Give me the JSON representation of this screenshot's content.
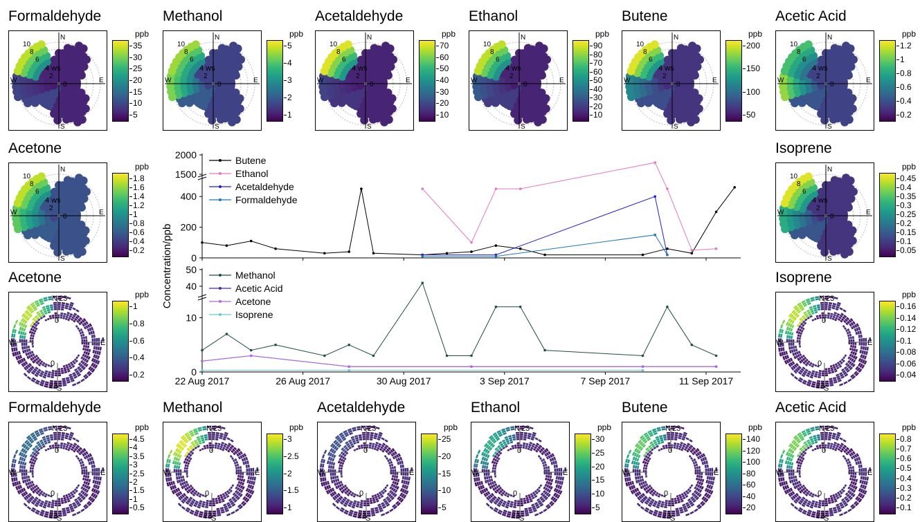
{
  "roses_top": [
    {
      "title": "Formaldehyde",
      "unit": "ppb",
      "ticks": [
        "35",
        "30",
        "25",
        "20",
        "15",
        "10",
        "5"
      ],
      "hot": [
        0.2,
        0.7,
        0.9
      ],
      "base": 0.1
    },
    {
      "title": "Methanol",
      "unit": "ppb",
      "ticks": [
        "5",
        "4",
        "3",
        "2",
        "1"
      ],
      "hot": [
        0.9,
        0.95,
        0.85
      ],
      "base": 0.2
    },
    {
      "title": "Acetaldehyde",
      "unit": "ppb",
      "ticks": [
        "70",
        "60",
        "50",
        "40",
        "30",
        "20",
        "10"
      ],
      "hot": [
        0.2,
        0.5,
        0.95
      ],
      "base": 0.1
    },
    {
      "title": "Ethanol",
      "unit": "ppb",
      "ticks": [
        "90",
        "80",
        "70",
        "60",
        "50",
        "40",
        "30",
        "20",
        "10"
      ],
      "hot": [
        0.3,
        0.6,
        0.9
      ],
      "base": 0.1
    },
    {
      "title": "Butene",
      "unit": "ppb",
      "ticks": [
        "200",
        "150",
        "100",
        "50"
      ],
      "hot": [
        0.5,
        0.8,
        0.95
      ],
      "base": 0.15
    },
    {
      "title": "Acetic Acid",
      "unit": "ppb",
      "ticks": [
        "1.2",
        "1",
        "0.8",
        "0.6",
        "0.4",
        "0.2"
      ],
      "hot": [
        0.95,
        0.9,
        0.7
      ],
      "base": 0.2
    }
  ],
  "roses_mid": [
    {
      "title": "Acetone",
      "unit": "ppb",
      "ticks": [
        "1.8",
        "1.6",
        "1.4",
        "1.2",
        "1",
        "0.8",
        "0.6",
        "0.4",
        "0.2"
      ],
      "hot": [
        0.8,
        0.95,
        0.9
      ],
      "base": 0.25
    },
    {
      "title": "Isoprene",
      "unit": "ppb",
      "ticks": [
        "0.45",
        "0.4",
        "0.35",
        "0.3",
        "0.25",
        "0.2",
        "0.15",
        "0.1",
        "0.05"
      ],
      "hot": [
        0.7,
        0.9,
        0.95
      ],
      "base": 0.15
    }
  ],
  "rose_labels": {
    "n": "N",
    "s": "S",
    "e": "E",
    "w": "W",
    "ws": "ws",
    "r10": "10",
    "r8": "8",
    "r6": "6",
    "r4": "4",
    "r2": "2",
    "r0": "0"
  },
  "rings_mid": [
    {
      "title": "Acetone",
      "unit": "ppb",
      "ticks": [
        "1",
        "0.8",
        "0.6",
        "0.4",
        "0.2"
      ],
      "hot": 0.9
    },
    {
      "title": "Isoprene",
      "unit": "ppb",
      "ticks": [
        "0.16",
        "0.14",
        "0.12",
        "0.1",
        "0.08",
        "0.06",
        "0.04"
      ],
      "hot": 0.9
    }
  ],
  "rings_bottom": [
    {
      "title": "Formaldehyde",
      "unit": "ppb",
      "ticks": [
        "4.5",
        "4",
        "3.5",
        "3",
        "2.5",
        "2",
        "1.5",
        "1",
        "0.5"
      ],
      "hot": 0.35
    },
    {
      "title": "Methanol",
      "unit": "ppb",
      "ticks": [
        "3",
        "2.5",
        "2",
        "1.5",
        "1"
      ],
      "hot": 0.95
    },
    {
      "title": "Acetaldehyde",
      "unit": "ppb",
      "ticks": [
        "25",
        "20",
        "15",
        "10",
        "5"
      ],
      "hot": 0.25
    },
    {
      "title": "Ethanol",
      "unit": "ppb",
      "ticks": [
        "30",
        "25",
        "20",
        "15",
        "10",
        "5"
      ],
      "hot": 0.6
    },
    {
      "title": "Butene",
      "unit": "ppb",
      "ticks": [
        "140",
        "120",
        "100",
        "80",
        "60",
        "40",
        "20"
      ],
      "hot": 0.75
    },
    {
      "title": "Acetic Acid",
      "unit": "ppb",
      "ticks": [
        "0.8",
        "0.7",
        "0.6",
        "0.5",
        "0.4",
        "0.3",
        "0.2",
        "0.1"
      ],
      "hot": 0.8
    }
  ],
  "ring_labels": {
    "n": "N",
    "s": "S",
    "e": "E",
    "w": "W",
    "h23": "23",
    "h0": "0"
  },
  "chart_data": {
    "type": "line",
    "ylabel": "Concentration/ppb",
    "x_ticks": [
      "22 Aug 2017",
      "26 Aug 2017",
      "30 Aug 2017",
      "3 Sep 2017",
      "7 Sep 2017",
      "11 Sep 2017"
    ],
    "x_range": [
      "2017-08-22",
      "2017-09-13"
    ],
    "top_panel": {
      "y_ticks_lower": [
        "0",
        "200",
        "400"
      ],
      "y_ticks_upper": [
        "1500",
        "2000"
      ],
      "ylim_lower": [
        0,
        500
      ],
      "ylim_upper": [
        1500,
        2000
      ],
      "series": [
        {
          "name": "Butene",
          "color": "#000000",
          "x": [
            "2017-08-22",
            "2017-08-23",
            "2017-08-24",
            "2017-08-25",
            "2017-08-27",
            "2017-08-28",
            "2017-08-28T12:00",
            "2017-08-29",
            "2017-08-31",
            "2017-09-01",
            "2017-09-02",
            "2017-09-03",
            "2017-09-04",
            "2017-09-05",
            "2017-09-09",
            "2017-09-10",
            "2017-09-11",
            "2017-09-12",
            "2017-09-12T18:00"
          ],
          "y": [
            100,
            80,
            110,
            60,
            30,
            40,
            450,
            30,
            20,
            30,
            40,
            80,
            60,
            20,
            20,
            60,
            30,
            300,
            460
          ]
        },
        {
          "name": "Ethanol",
          "color": "#e377c2",
          "x": [
            "2017-08-31",
            "2017-09-02",
            "2017-09-03",
            "2017-09-04",
            "2017-09-09T12:00",
            "2017-09-10",
            "2017-09-11",
            "2017-09-12"
          ],
          "y": [
            450,
            100,
            450,
            450,
            1800,
            450,
            50,
            60
          ]
        },
        {
          "name": "Acetaldehyde",
          "color": "#1f1fd0",
          "x": [
            "2017-08-31",
            "2017-09-03",
            "2017-09-09T12:00",
            "2017-09-10"
          ],
          "y": [
            20,
            20,
            400,
            20
          ]
        },
        {
          "name": "Formaldehyde",
          "color": "#1f77b4",
          "x": [
            "2017-08-31",
            "2017-09-03",
            "2017-09-09T12:00",
            "2017-09-10"
          ],
          "y": [
            10,
            10,
            150,
            20
          ]
        }
      ]
    },
    "bottom_panel": {
      "y_ticks_lower": [
        "0",
        "10"
      ],
      "y_ticks_upper": [
        "40",
        "50"
      ],
      "ylim_lower": [
        0,
        13
      ],
      "ylim_upper": [
        35,
        50
      ],
      "series": [
        {
          "name": "Methanol",
          "color": "#1b4f45",
          "x": [
            "2017-08-22",
            "2017-08-23",
            "2017-08-24",
            "2017-08-25",
            "2017-08-27",
            "2017-08-28",
            "2017-08-29",
            "2017-08-31",
            "2017-09-01",
            "2017-09-02",
            "2017-09-03",
            "2017-09-04",
            "2017-09-05",
            "2017-09-09",
            "2017-09-10",
            "2017-09-11",
            "2017-09-12"
          ],
          "y": [
            4,
            7,
            4,
            5,
            3,
            5,
            3,
            42,
            3,
            3,
            12,
            12,
            4,
            3,
            12,
            5,
            3
          ]
        },
        {
          "name": "Acetic Acid",
          "color": "#4b2a9e",
          "x": [
            "2017-08-22",
            "2017-08-24",
            "2017-08-28",
            "2017-09-02",
            "2017-09-09",
            "2017-09-12"
          ],
          "y": [
            2,
            3,
            1,
            1,
            1,
            1
          ]
        },
        {
          "name": "Acetone",
          "color": "#b266e8",
          "x": [
            "2017-08-22",
            "2017-08-24",
            "2017-08-28",
            "2017-09-02",
            "2017-09-09",
            "2017-09-12"
          ],
          "y": [
            2,
            3,
            1,
            1,
            1,
            1
          ]
        },
        {
          "name": "Isoprene",
          "color": "#6cc6d6",
          "x": [
            "2017-08-22",
            "2017-08-28",
            "2017-09-09"
          ],
          "y": [
            0.3,
            0.3,
            0.3
          ]
        }
      ]
    }
  }
}
